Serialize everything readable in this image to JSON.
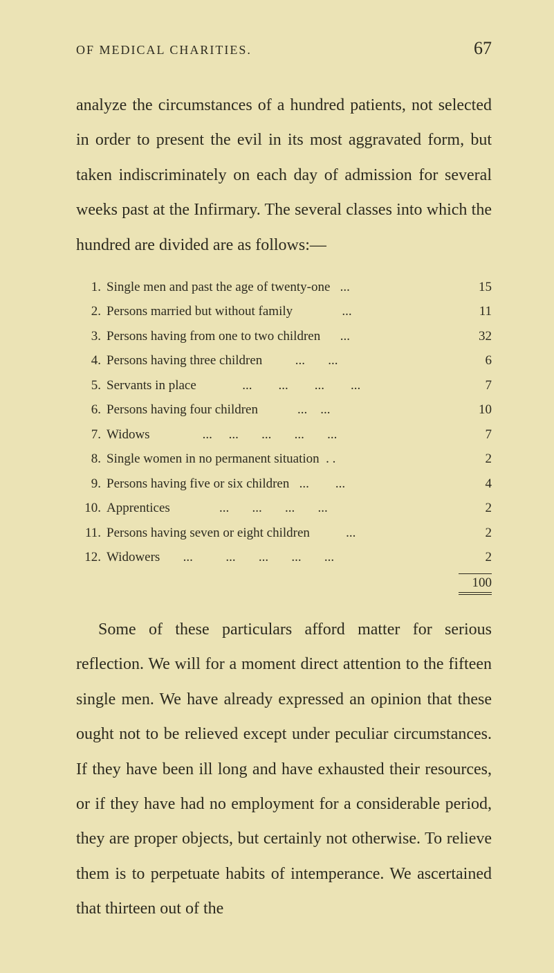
{
  "header": {
    "running_head": "OF MEDICAL CHARITIES.",
    "page_number": "67"
  },
  "paragraph_intro": "analyze the circumstances of a hundred patients, not selected in order to present the evil in its most aggravated form, but taken indiscriminately on each day of admission for several weeks past at the In­firmary. The several classes into which the hundred are divided are as follows:—",
  "list": {
    "items": [
      {
        "num": "1.",
        "label": "Single men and past the age of twenty-one   ...",
        "value": "15"
      },
      {
        "num": "2.",
        "label": "Persons married but without family               ...",
        "value": "11"
      },
      {
        "num": "3.",
        "label": "Persons having from one to two children      ...",
        "value": "32"
      },
      {
        "num": "4.",
        "label": "Persons having three children          ...       ...",
        "value": "6"
      },
      {
        "num": "5.",
        "label": "Servants in place              ...        ...        ...        ...",
        "value": "7"
      },
      {
        "num": "6.",
        "label": "Persons having four children            ...    ...",
        "value": "10"
      },
      {
        "num": "7.",
        "label": "Widows                ...     ...       ...       ...       ...",
        "value": "7"
      },
      {
        "num": "8.",
        "label": "Single women in no permanent situation  . .",
        "value": "2"
      },
      {
        "num": "9.",
        "label": "Persons having five or six children   ...        ...",
        "value": "4"
      },
      {
        "num": "10.",
        "label": "Apprentices               ...       ...       ...       ...",
        "value": "2"
      },
      {
        "num": "11.",
        "label": "Persons having seven or eight children           ...",
        "value": "2"
      },
      {
        "num": "12.",
        "label": "Widowers       ...          ...       ...       ...       ...",
        "value": "2"
      }
    ],
    "total": "100"
  },
  "paragraph_body": "Some of these particulars afford matter for serious reflection.  We will for a moment direct attention to the fifteen single men. We have already expressed an opinion that these ought not to be relieved except under peculiar circumstances. If they have been ill long and have exhausted their resources, or if they have had no employment for a considerable period, they are proper objects, but certainly not otherwise. To relieve them is to perpetuate habits of intem­perance. We ascertained that thirteen out of the"
}
